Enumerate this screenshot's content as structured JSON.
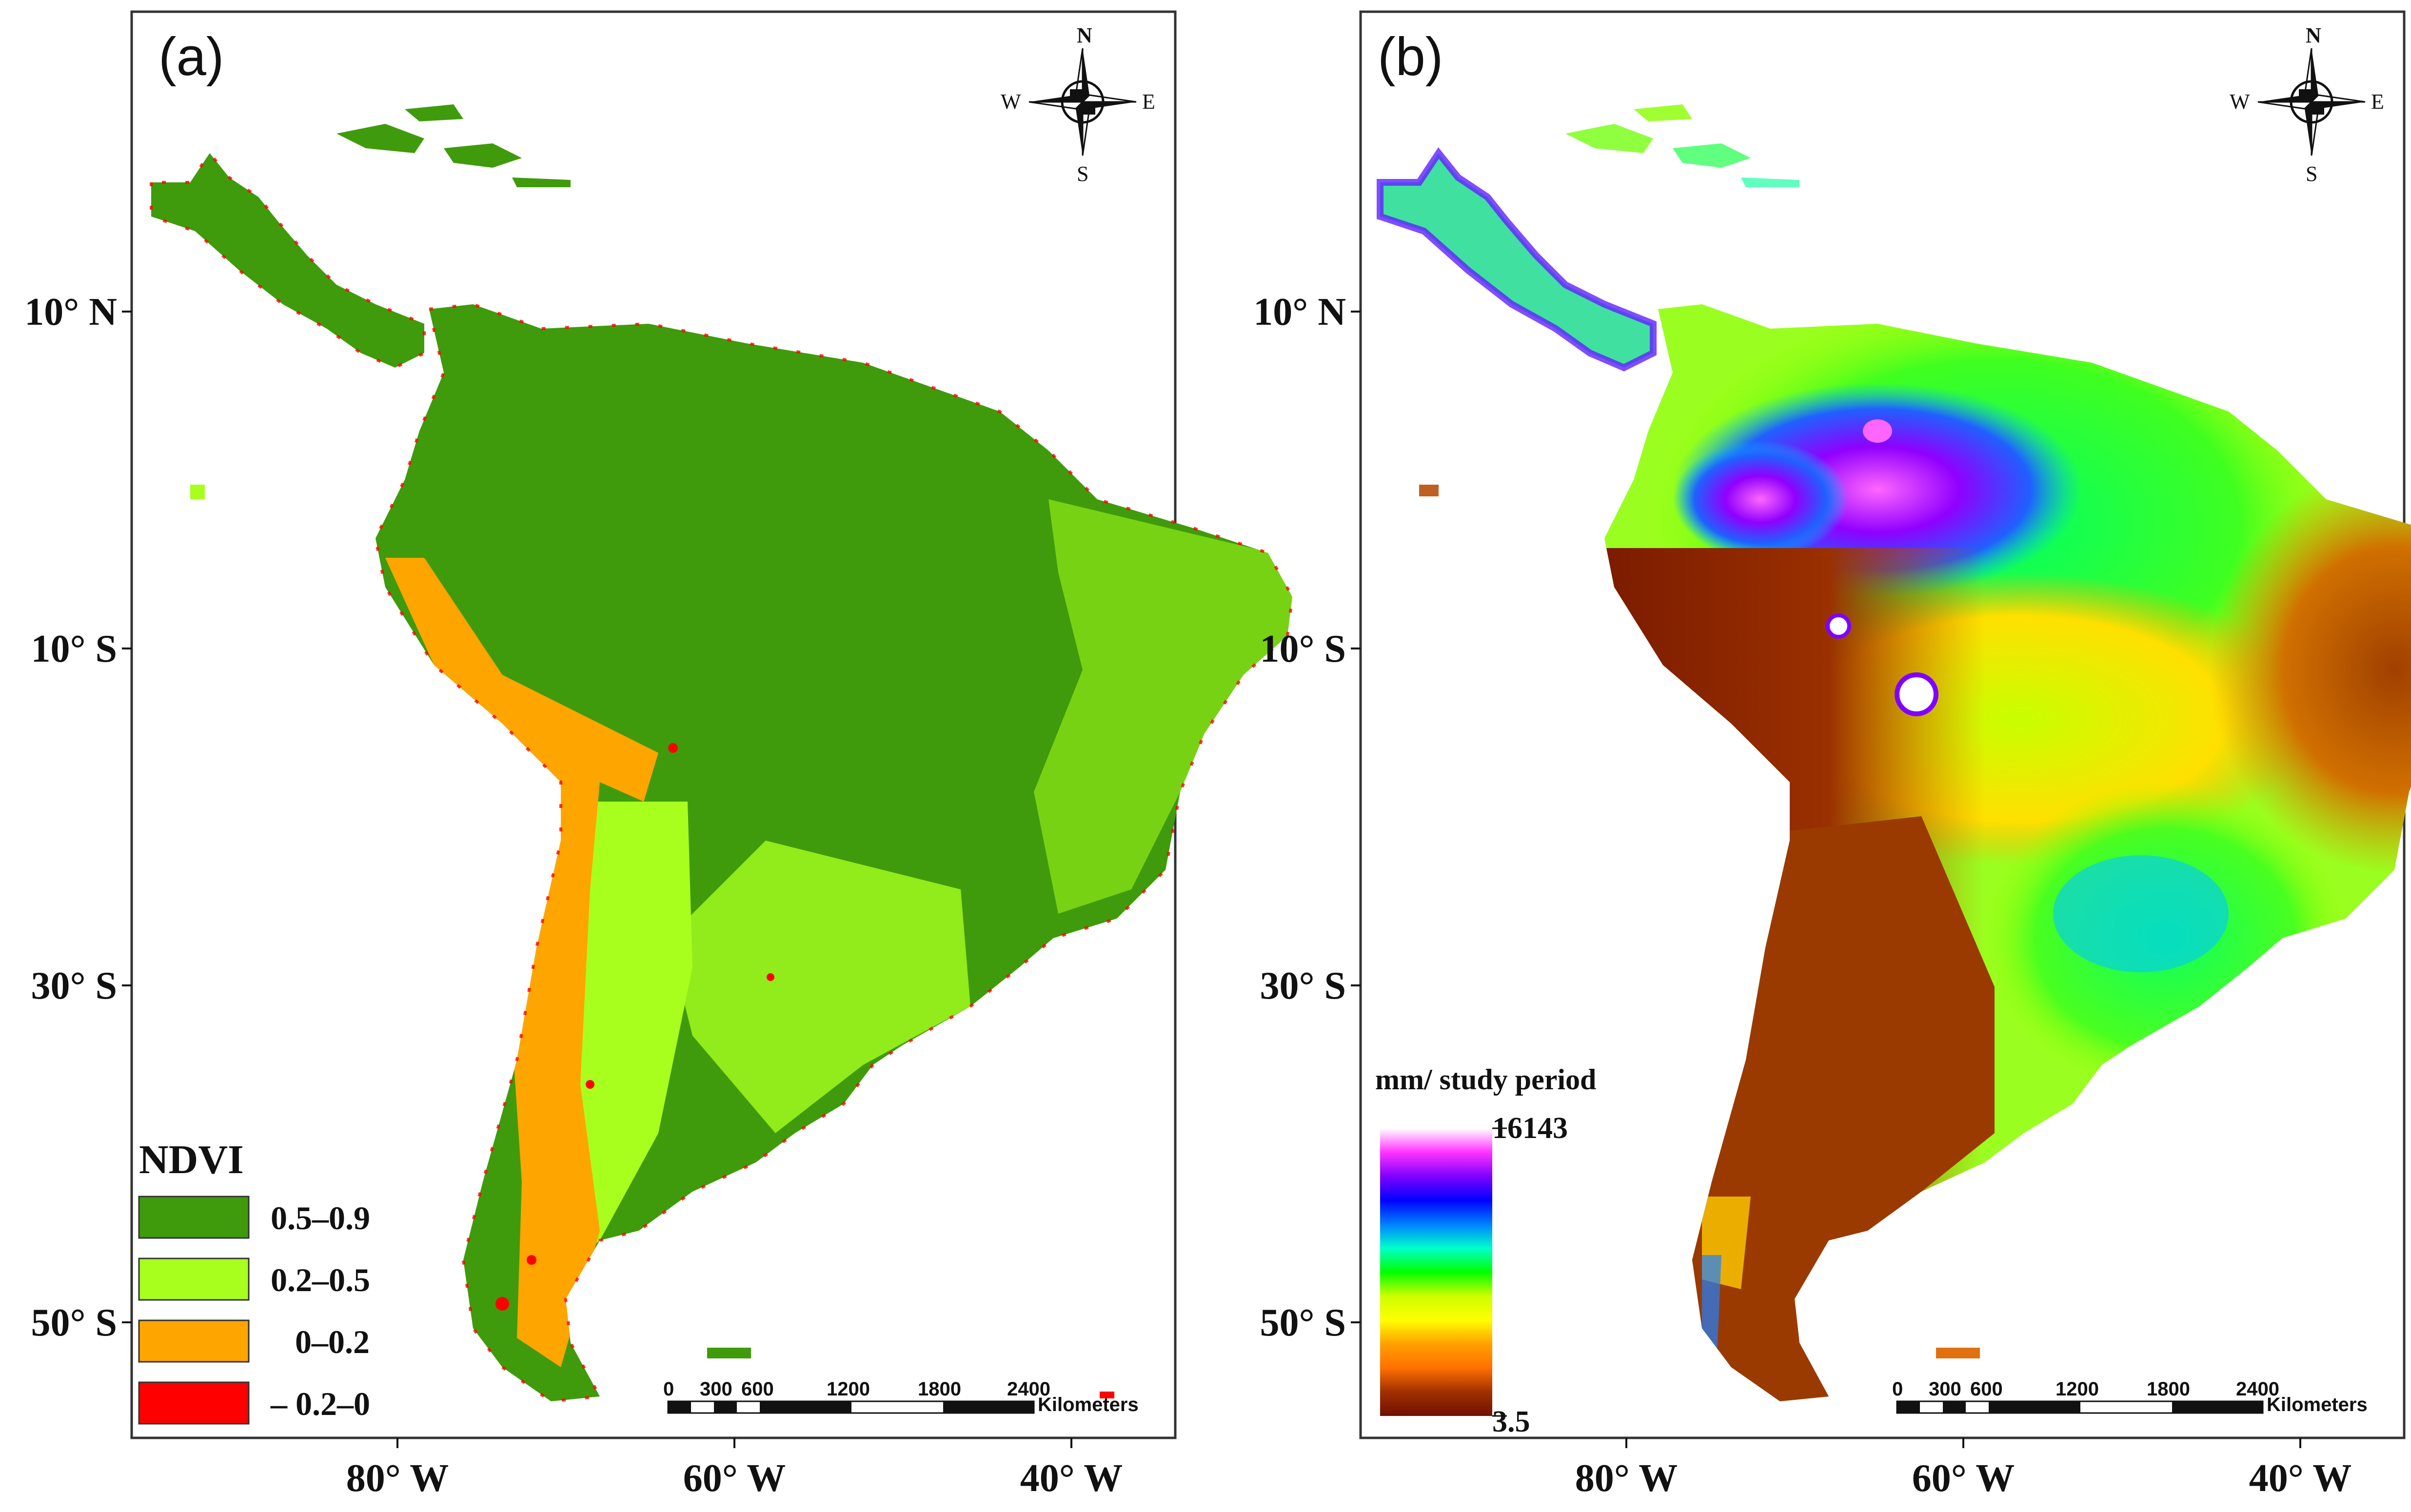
{
  "panels": [
    {
      "label": "(a)",
      "legend": {
        "title": "NDVI",
        "items": [
          {
            "label": "0.5–0.9",
            "color": "#3f9b0b"
          },
          {
            "label": "0.2–0.5",
            "color": "#a8ff1e"
          },
          {
            "label": "0–0.2",
            "color": "#ffa500"
          },
          {
            "label": "– 0.2–0",
            "color": "#ff0000"
          }
        ]
      }
    },
    {
      "label": "(b)",
      "colorbar": {
        "title": "mm/ study period",
        "max": "16143",
        "min": "3.5",
        "stops": [
          "#ffffff",
          "#ff33ff",
          "#8000ff",
          "#0000ff",
          "#0080ff",
          "#00ffcc",
          "#00ff00",
          "#ccff00",
          "#ffff00",
          "#ffa000",
          "#ff7000",
          "#a03000",
          "#701000"
        ]
      }
    }
  ],
  "axes": {
    "y_ticks": [
      "10° N",
      "10° S",
      "30° S",
      "50° S"
    ],
    "x_ticks": [
      "80° W",
      "60° W",
      "40° W"
    ]
  },
  "compass": {
    "n": "N",
    "s": "S",
    "e": "E",
    "w": "W"
  },
  "scale_bar": {
    "labels": [
      "0",
      "300",
      "600",
      "1200",
      "1800",
      "2400"
    ],
    "unit": "Kilometers"
  },
  "colors": {
    "ndvi_high": "#3f9b0b",
    "ndvi_mid": "#a8ff1e",
    "ndvi_low": "#ffa500",
    "ndvi_neg": "#ff0000",
    "precip_wet": "#8000ff",
    "precip_mid": "#00ff80",
    "precip_dry": "#7a1a00"
  }
}
